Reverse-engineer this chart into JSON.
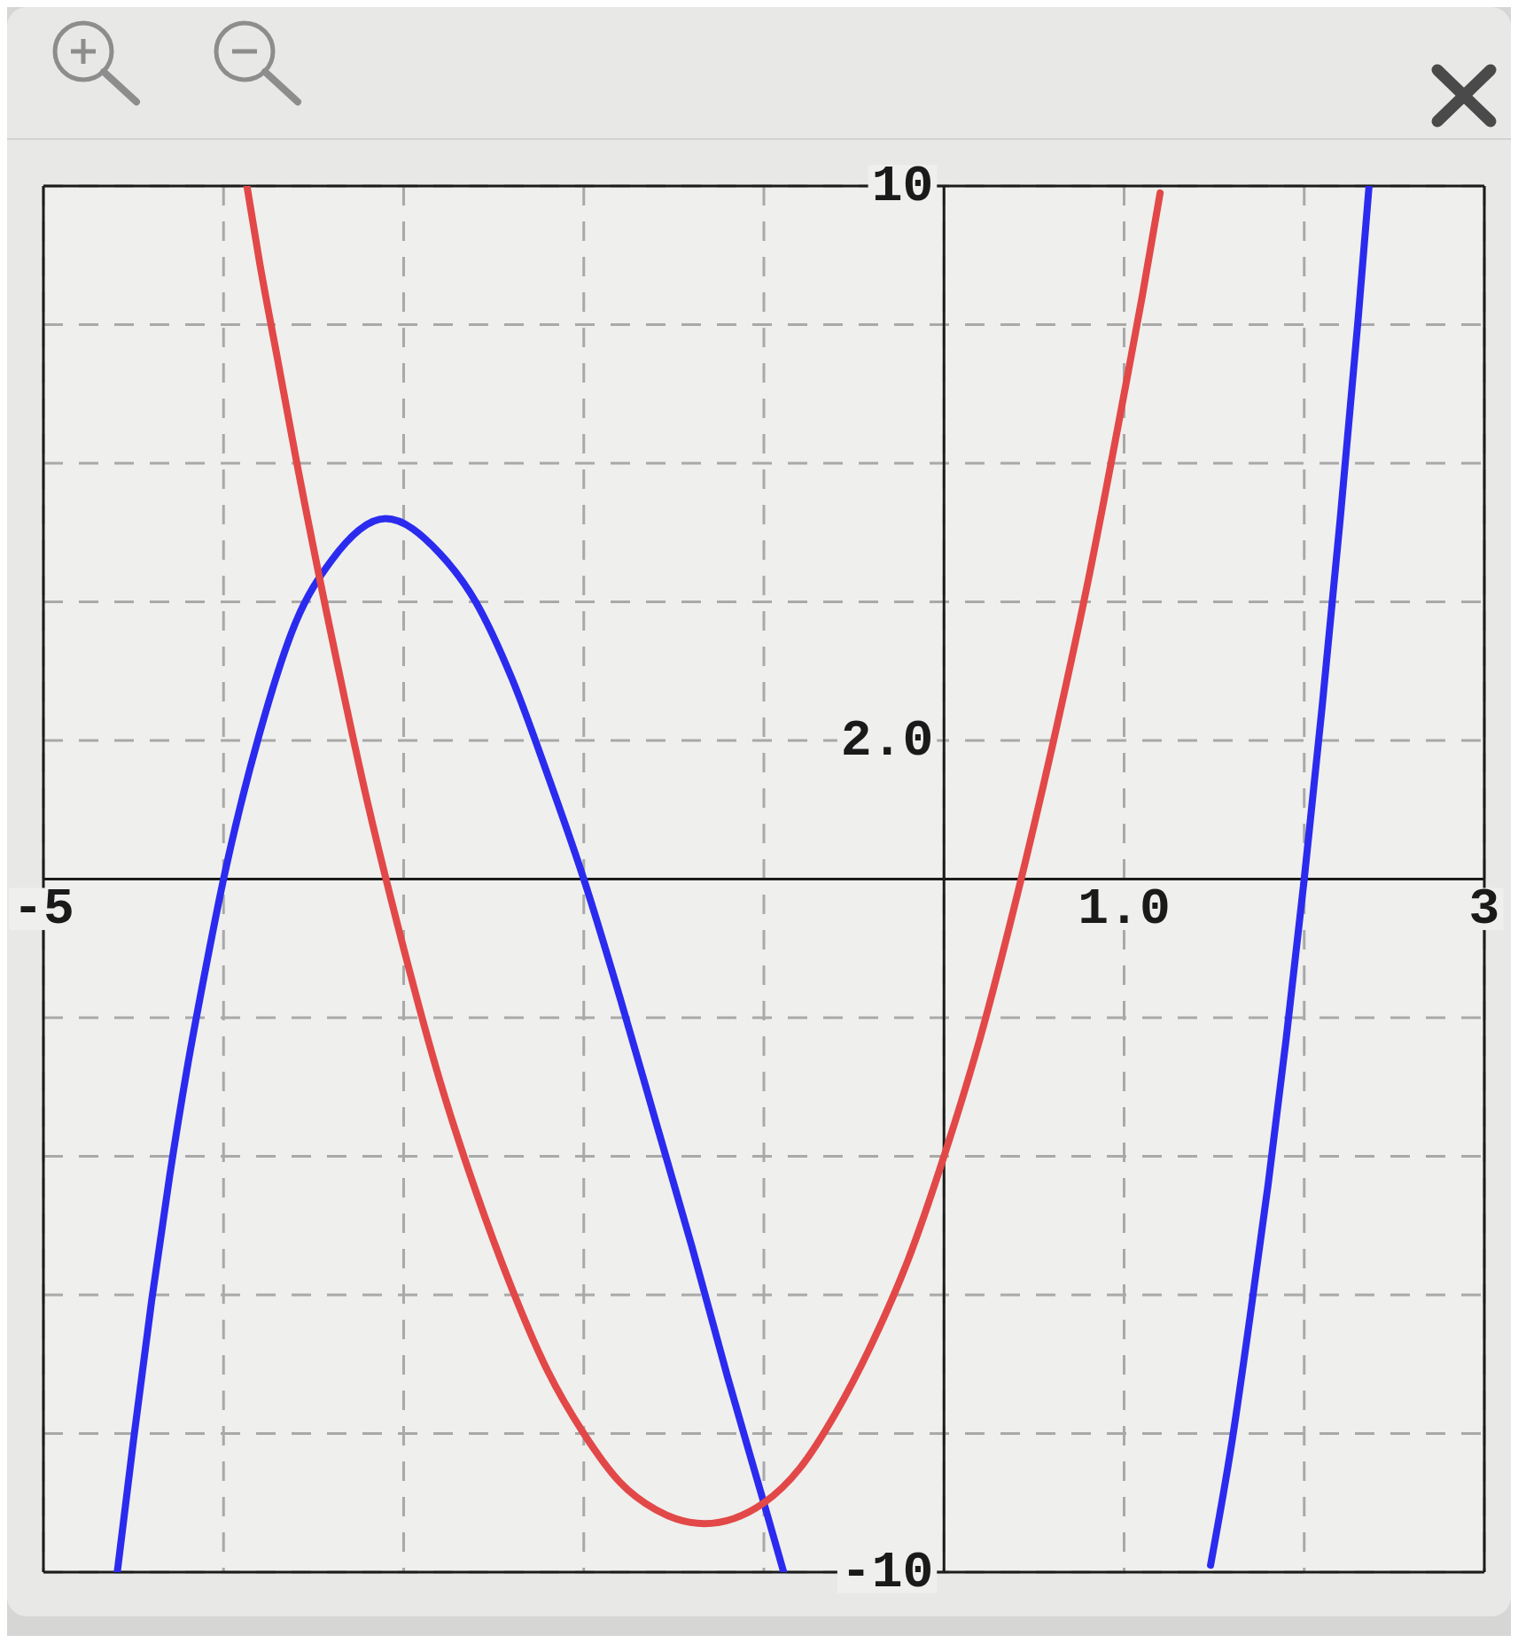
{
  "chart_data": {
    "type": "line",
    "xlim": [
      -5,
      3
    ],
    "xticks": [
      -5,
      {
        "value": -4,
        "label": null
      },
      {
        "value": -3,
        "label": null
      },
      {
        "value": -2,
        "label": null
      },
      {
        "value": -1,
        "label": null
      },
      {
        "value": 0,
        "label": null
      },
      {
        "value": 1,
        "label": "1.0"
      },
      {
        "value": 2,
        "label": null
      },
      3
    ],
    "ylim": [
      -10,
      10
    ],
    "yticks": [
      -10,
      {
        "value": -8,
        "label": null
      },
      {
        "value": -6,
        "label": null
      },
      {
        "value": -4,
        "label": null
      },
      {
        "value": -2,
        "label": null
      },
      {
        "value": 0,
        "label": null
      },
      {
        "value": 2,
        "label": "2.0"
      },
      {
        "value": 4,
        "label": null
      },
      {
        "value": 6,
        "label": null
      },
      {
        "value": 8,
        "label": null
      },
      10
    ],
    "grid": true,
    "marker": "none",
    "line_style": "solid",
    "series": [
      {
        "color": "#2b2bef",
        "x": [
          -4.59,
          -4.5,
          -4.4,
          -4.3,
          -4.2,
          -4.1,
          -4,
          -3.8,
          -3.6,
          -3.4,
          -3.1,
          -2.8,
          -2.6,
          -2.4,
          -2.2,
          -2,
          -1.8,
          -1.6,
          -1.4,
          -1.2,
          -1,
          -0.89,
          0.3,
          1.48,
          1.6,
          1.7,
          1.8,
          1.9,
          2,
          2.1,
          2.2,
          2.3,
          2.36
        ],
        "values": [
          -10,
          -8.1,
          -6.1,
          -4.3,
          -2.7,
          -1.3,
          0,
          2.1,
          3.7,
          4.6,
          5.2,
          4.7,
          4.0,
          2.9,
          1.5,
          0,
          -1.7,
          -3.5,
          -5.3,
          -7.2,
          -9,
          -10,
          null,
          -9.9,
          -8.1,
          -6.3,
          -4.4,
          -2.3,
          0,
          2.5,
          5.2,
          8.1,
          10
        ]
      },
      {
        "color": "#e24848",
        "x": [
          -3.87,
          -3.8,
          -3.7,
          -3.6,
          -3.4,
          -3.2,
          -3,
          -2.8,
          -2.6,
          -2.4,
          -2.2,
          -2,
          -1.8,
          -1.6,
          -1.33,
          -1,
          -0.8,
          -0.6,
          -0.4,
          -0.2,
          0,
          0.2,
          0.4,
          0.6,
          0.8,
          1,
          1.1,
          1.2
        ],
        "values": [
          10,
          8.9,
          7.5,
          6.1,
          3.5,
          1.1,
          -1,
          -2.9,
          -4.5,
          -5.9,
          -7.1,
          -8,
          -8.7,
          -9.1,
          -9.3,
          -9,
          -8.5,
          -7.7,
          -6.7,
          -5.5,
          -4,
          -2.3,
          -0.3,
          1.9,
          4.3,
          7,
          8.4,
          9.9
        ]
      }
    ]
  }
}
